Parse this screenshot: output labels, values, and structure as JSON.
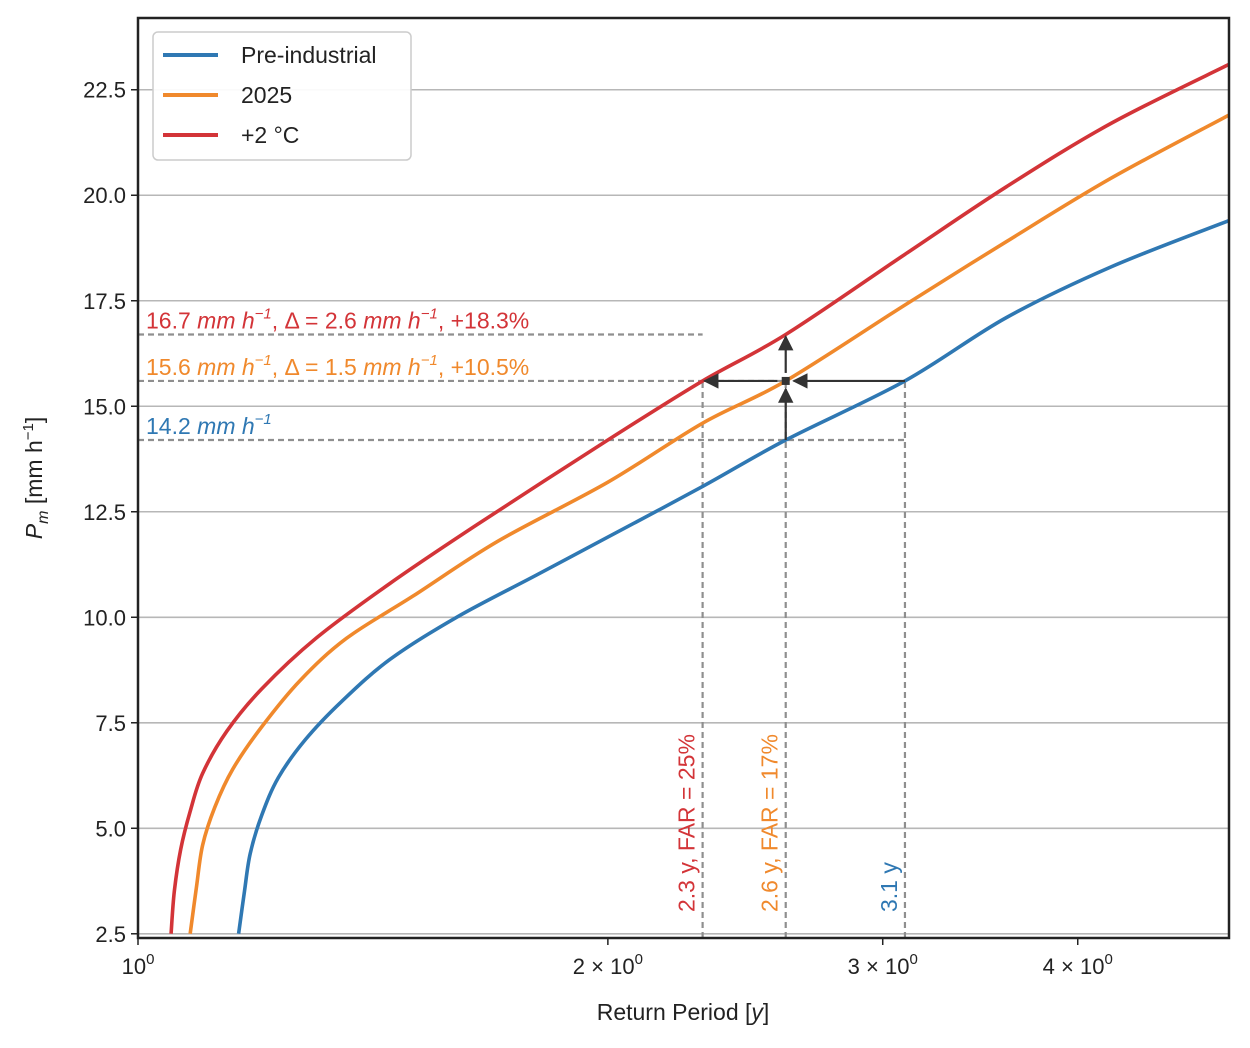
{
  "chart_data": {
    "type": "line",
    "x_scale": "log",
    "xlabel_main": "Return Period [",
    "xlabel_var": "y",
    "xlabel_end": "]",
    "ylabel_sym": "P",
    "ylabel_sub": "m",
    "ylabel_unit_open": " [mm h",
    "ylabel_unit_exp": "−1",
    "ylabel_unit_close": "]",
    "xlim": [
      1.0,
      5.0
    ],
    "ylim": [
      2.4,
      24.2
    ],
    "y_ticks": [
      2.5,
      5.0,
      7.5,
      10.0,
      12.5,
      15.0,
      17.5,
      20.0,
      22.5
    ],
    "y_tick_labels": [
      "2.5",
      "5.0",
      "7.5",
      "10.0",
      "12.5",
      "15.0",
      "17.5",
      "20.0",
      "22.5"
    ],
    "x_ticks": [
      {
        "value": 1,
        "base": "10",
        "exp": "0",
        "mult": ""
      },
      {
        "value": 2,
        "base": "10",
        "exp": "0",
        "mult": "2 × "
      },
      {
        "value": 3,
        "base": "10",
        "exp": "0",
        "mult": "3 × "
      },
      {
        "value": 4,
        "base": "10",
        "exp": "0",
        "mult": "4 × "
      }
    ],
    "grid": "horizontal",
    "legend_position": "top-left",
    "series": [
      {
        "name": "Pre-industrial",
        "color": "#2f78b3",
        "x": [
          1.16,
          1.17,
          1.18,
          1.2,
          1.23,
          1.28,
          1.35,
          1.45,
          1.6,
          1.8,
          2.0,
          2.3,
          2.6,
          3.1,
          3.6,
          4.2,
          5.0
        ],
        "y": [
          2.5,
          3.5,
          4.4,
          5.3,
          6.2,
          7.1,
          8.0,
          9.0,
          10.0,
          11.0,
          11.9,
          13.1,
          14.2,
          15.6,
          17.1,
          18.3,
          19.4
        ]
      },
      {
        "name": "2025",
        "color": "#f0892c",
        "x": [
          1.08,
          1.09,
          1.1,
          1.12,
          1.15,
          1.2,
          1.27,
          1.36,
          1.5,
          1.7,
          2.0,
          2.3,
          2.6,
          3.1,
          3.6,
          4.2,
          5.0
        ],
        "y": [
          2.5,
          3.6,
          4.6,
          5.5,
          6.4,
          7.4,
          8.5,
          9.5,
          10.5,
          11.8,
          13.2,
          14.6,
          15.6,
          17.4,
          18.9,
          20.4,
          21.9
        ]
      },
      {
        "name": "+2 °C",
        "color": "#d33438",
        "x": [
          1.05,
          1.055,
          1.065,
          1.08,
          1.1,
          1.14,
          1.2,
          1.3,
          1.45,
          1.65,
          2.0,
          2.3,
          2.6,
          3.1,
          3.6,
          4.2,
          5.0
        ],
        "y": [
          2.5,
          3.5,
          4.5,
          5.4,
          6.3,
          7.3,
          8.3,
          9.5,
          10.8,
          12.2,
          14.2,
          15.6,
          16.7,
          18.6,
          20.2,
          21.7,
          23.1
        ]
      }
    ],
    "annotations": {
      "y_levels": [
        {
          "value": 16.7,
          "color": "#d33438",
          "num": "16.7 ",
          "unit": "mm h",
          "exp": "−1",
          "rest": ", Δ = 2.6 ",
          "unit2": "mm h",
          "exp2": "−1",
          "tail": ", +18.3%"
        },
        {
          "value": 15.6,
          "color": "#f0892c",
          "num": "15.6 ",
          "unit": "mm h",
          "exp": "−1",
          "rest": ", Δ = 1.5 ",
          "unit2": "mm h",
          "exp2": "−1",
          "tail": ", +10.5%"
        },
        {
          "value": 14.2,
          "color": "#2f78b3",
          "num": "14.2 ",
          "unit": "mm h",
          "exp": "−1",
          "rest": "",
          "unit2": "",
          "exp2": "",
          "tail": ""
        }
      ],
      "x_levels": [
        {
          "value": 2.3,
          "color": "#d33438",
          "label": "2.3 y, FAR = 25%"
        },
        {
          "value": 2.6,
          "color": "#f0892c",
          "label": "2.6 y, FAR = 17%"
        },
        {
          "value": 3.1,
          "color": "#2f78b3",
          "label": "3.1 y"
        }
      ],
      "marker": {
        "x": 2.6,
        "y": 15.6
      }
    }
  }
}
